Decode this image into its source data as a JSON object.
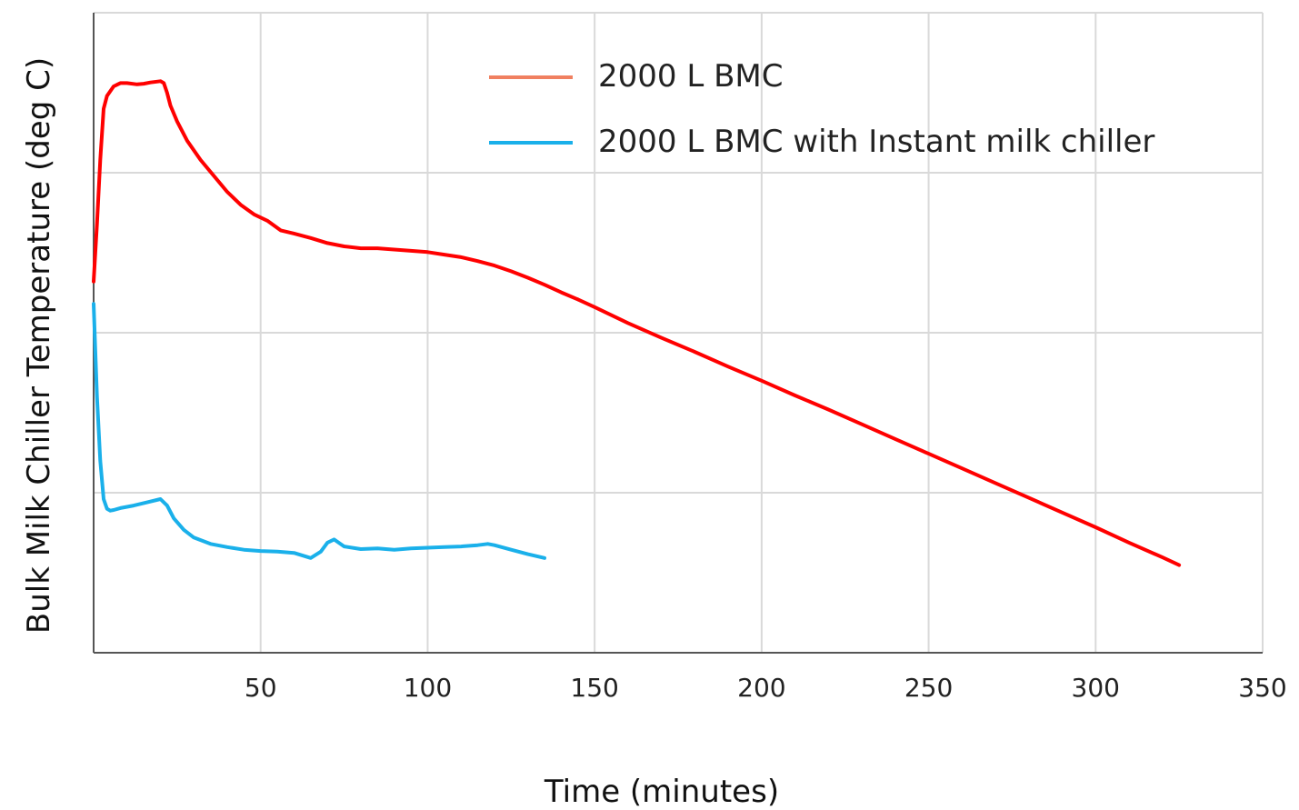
{
  "chart_data": {
    "type": "line",
    "title": "",
    "xlabel": "Time (minutes)",
    "ylabel": "Bulk Milk Chiller Temperature (deg C)",
    "xlim": [
      0,
      350
    ],
    "x_ticks": [
      50,
      100,
      150,
      200,
      250,
      300,
      350
    ],
    "y_tick_labels_shown": false,
    "grid": true,
    "legend_position": "top-right",
    "series": [
      {
        "name": "2000 L BMC",
        "color": "#ff0000",
        "legend_color": "#f08060",
        "x": [
          0,
          1,
          2,
          3,
          4,
          6,
          8,
          10,
          13,
          15,
          17,
          20,
          21,
          22,
          23,
          25,
          28,
          32,
          36,
          40,
          44,
          48,
          52,
          56,
          60,
          65,
          70,
          75,
          80,
          85,
          90,
          95,
          100,
          105,
          110,
          115,
          120,
          125,
          130,
          135,
          140,
          145,
          150,
          160,
          170,
          180,
          190,
          200,
          210,
          220,
          230,
          240,
          250,
          260,
          270,
          280,
          290,
          300,
          310,
          320,
          325
        ],
        "y": [
          0.58,
          0.67,
          0.77,
          0.85,
          0.87,
          0.885,
          0.89,
          0.89,
          0.888,
          0.889,
          0.891,
          0.893,
          0.89,
          0.875,
          0.855,
          0.83,
          0.8,
          0.77,
          0.745,
          0.72,
          0.7,
          0.685,
          0.675,
          0.66,
          0.655,
          0.648,
          0.64,
          0.635,
          0.632,
          0.632,
          0.63,
          0.628,
          0.626,
          0.622,
          0.618,
          0.612,
          0.605,
          0.596,
          0.586,
          0.575,
          0.563,
          0.552,
          0.54,
          0.515,
          0.492,
          0.47,
          0.447,
          0.425,
          0.402,
          0.38,
          0.357,
          0.334,
          0.311,
          0.288,
          0.265,
          0.242,
          0.219,
          0.196,
          0.172,
          0.149,
          0.137
        ]
      },
      {
        "name": "2000 L BMC with Instant milk chiller",
        "color": "#1ab0ea",
        "legend_color": "#1ab0ea",
        "x": [
          0,
          1,
          2,
          3,
          4,
          5,
          6,
          8,
          12,
          16,
          20,
          22,
          24,
          27,
          30,
          35,
          40,
          45,
          50,
          55,
          60,
          65,
          68,
          70,
          72,
          75,
          80,
          85,
          90,
          95,
          100,
          105,
          110,
          115,
          118,
          120,
          125,
          130,
          135
        ],
        "y": [
          0.545,
          0.4,
          0.3,
          0.24,
          0.225,
          0.222,
          0.223,
          0.226,
          0.23,
          0.235,
          0.24,
          0.23,
          0.21,
          0.192,
          0.18,
          0.17,
          0.165,
          0.161,
          0.159,
          0.158,
          0.156,
          0.148,
          0.158,
          0.172,
          0.177,
          0.166,
          0.162,
          0.163,
          0.161,
          0.163,
          0.164,
          0.165,
          0.166,
          0.168,
          0.17,
          0.168,
          0.161,
          0.154,
          0.148
        ]
      }
    ]
  }
}
